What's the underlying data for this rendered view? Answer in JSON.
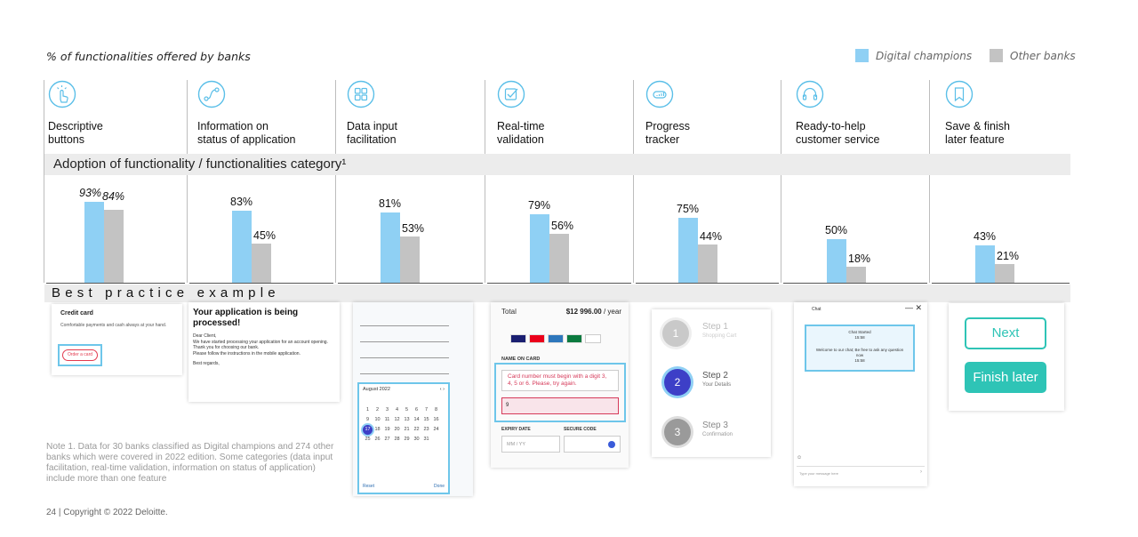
{
  "title": "% of functionalities offered by banks",
  "legend": {
    "digital": "Digital champions",
    "other": "Other banks"
  },
  "colors": {
    "digital": "#8fd0f4",
    "other": "#c3c3c3",
    "accent": "#2ec4b6"
  },
  "categories": [
    {
      "line1": "Descriptive",
      "line2": "buttons",
      "icon": "hand-tap-icon"
    },
    {
      "line1": "Information on",
      "line2": "status of application",
      "icon": "flow-path-icon"
    },
    {
      "line1": "Data input",
      "line2": "facilitation",
      "icon": "grid-icon"
    },
    {
      "line1": "Real-time",
      "line2": "validation",
      "icon": "checkbox-icon"
    },
    {
      "line1": "Progress",
      "line2": "tracker",
      "icon": "progress-chart-icon"
    },
    {
      "line1": "Ready-to-help",
      "line2": "customer service",
      "icon": "headset-icon"
    },
    {
      "line1": "Save & finish",
      "line2": "later feature",
      "icon": "bookmark-icon"
    }
  ],
  "band1": "Adoption of functionality / functionalities category¹",
  "band2": "Best practice example",
  "chart_data": {
    "type": "bar",
    "categories": [
      "Descriptive buttons",
      "Information on status of application",
      "Data input facilitation",
      "Real-time validation",
      "Progress tracker",
      "Ready-to-help customer service",
      "Save & finish later feature"
    ],
    "series": [
      {
        "name": "Digital champions",
        "values": [
          93,
          83,
          81,
          79,
          75,
          50,
          43
        ]
      },
      {
        "name": "Other banks",
        "values": [
          84,
          45,
          53,
          56,
          44,
          18,
          21
        ]
      }
    ],
    "labels_digital": [
      "93%",
      "83%",
      "81%",
      "79%",
      "75%",
      "50%",
      "43%"
    ],
    "labels_other": [
      "84%",
      "45%",
      "53%",
      "56%",
      "44%",
      "18%",
      "21%"
    ],
    "ylim": [
      0,
      100
    ]
  },
  "examples": {
    "credit": {
      "title": "Credit card",
      "text": "Comfortable payments and cash always at your hand.",
      "button": "Order a card"
    },
    "status": {
      "title": "Your application is being processed!",
      "greeting": "Dear Client,",
      "body1": "We have started processing your application for an account opening.",
      "body2": "Thank you for choosing our bank.",
      "body3": "Please follow the instructions in the mobile application.",
      "sign": "Best regards,"
    },
    "calendar": {
      "month": "August 2022",
      "days": [
        "1",
        "2",
        "3",
        "4",
        "5",
        "6",
        "7",
        "8",
        "9",
        "10",
        "11",
        "12",
        "13",
        "14",
        "15",
        "16",
        "17",
        "18",
        "19",
        "20",
        "21",
        "22",
        "23",
        "24",
        "25",
        "26",
        "27",
        "28",
        "29",
        "30",
        "31"
      ],
      "selected": "17",
      "reset": "Reset",
      "done": "Done"
    },
    "payment": {
      "total_label": "Total",
      "total_value": "$12 996.00",
      "per": "/ year",
      "name_label": "NAME ON CARD",
      "error": "Card number must begin with a digit 3, 4, 5 or 6. Please, try again.",
      "input": "9",
      "expiry_label": "EXPIRY DATE",
      "expiry_ph": "MM / YY",
      "code_label": "SECURE CODE"
    },
    "steps": [
      {
        "num": "1",
        "title": "Step 1",
        "sub": "Shopping Cart"
      },
      {
        "num": "2",
        "title": "Step 2",
        "sub": "Your Details"
      },
      {
        "num": "3",
        "title": "Step 3",
        "sub": "Confirmation"
      }
    ],
    "chat": {
      "header": "Chat",
      "started": "Chat Started",
      "time": "15:58",
      "welcome": "Welcome to our chat; Be free to ask any question now",
      "time2": "15:58",
      "placeholder": "Type your message here"
    },
    "save": {
      "next": "Next",
      "finish": "Finish later"
    }
  },
  "note": "Note 1. Data for 30 banks classified as Digital champions and 274 other banks which were covered in 2022 edition. Some categories (data input facilitation, real-time validation, information on status of application) include more than one feature",
  "footer": "24 | Copyright © 2022 Deloitte."
}
